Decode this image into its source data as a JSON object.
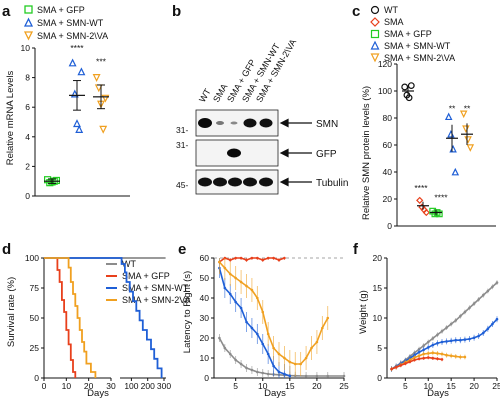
{
  "panels": {
    "a": {
      "label": "a",
      "legend": [
        "SMA + GFP",
        "SMA + SMN-WT",
        "SMA + SMN-2\\VA"
      ],
      "ylabel": "Relative mRNA Levels",
      "yticks": [
        "0",
        "2",
        "4",
        "6",
        "8",
        "10"
      ],
      "stars": [
        "****",
        "***"
      ]
    },
    "b": {
      "label": "b",
      "lanes": [
        "WT",
        "SMA",
        "SMA + GFP",
        "SMA + SMN-WT",
        "SMA + SMN-2\\VA"
      ],
      "bands": [
        "SMN",
        "GFP",
        "Tubulin"
      ],
      "markers": [
        "31-",
        "31-",
        "45-"
      ]
    },
    "c": {
      "label": "c",
      "legend": [
        "WT",
        "SMA",
        "SMA + GFP",
        "SMA + SMN-WT",
        "SMA + SMN-2\\VA"
      ],
      "ylabel": "Relative SMN protein levels (%)",
      "yticks": [
        "0",
        "20",
        "40",
        "60",
        "80",
        "100",
        "120"
      ],
      "stars": [
        "****",
        "****",
        "**",
        "**"
      ]
    },
    "d": {
      "label": "d",
      "legend": [
        "WT",
        "SMA + GFP",
        "SMA + SMN-WT",
        "SMA + SMN-2VA"
      ],
      "ylabel": "Survival rate (%)",
      "xlabel": "Days",
      "yticks": [
        "0",
        "25",
        "50",
        "75",
        "100"
      ],
      "xticks": [
        "0",
        "10",
        "20",
        "30",
        "100",
        "200",
        "300"
      ]
    },
    "e": {
      "label": "e",
      "ylabel": "Latency to Right (s)",
      "xlabel": "Days",
      "yticks": [
        "0",
        "10",
        "20",
        "30",
        "40",
        "50",
        "60"
      ],
      "xticks": [
        "5",
        "10",
        "15",
        "20",
        "25"
      ]
    },
    "f": {
      "label": "f",
      "ylabel": "Weight (g)",
      "xlabel": "Days",
      "yticks": [
        "0",
        "5",
        "10",
        "15",
        "20"
      ],
      "xticks": [
        "5",
        "10",
        "15",
        "20",
        "25"
      ]
    }
  },
  "colors": {
    "wt": "#8c8c8c",
    "gfp": "#22cc22",
    "sma": "#e8401c",
    "smnwt": "#1f5fd6",
    "smn2va": "#f0a020",
    "black": "#111111"
  },
  "chart_data": [
    {
      "panel": "a",
      "type": "scatter",
      "categories": [
        "SMA + GFP",
        "SMA + SMN-WT",
        "SMA + SMN-2\\VA"
      ],
      "means": [
        1.0,
        6.8,
        6.7
      ],
      "sem": [
        0.15,
        1.0,
        0.8
      ],
      "points": [
        [
          1.1,
          0.9,
          0.95,
          1.0,
          1.05
        ],
        [
          9.0,
          6.9,
          4.9,
          4.5,
          8.4
        ],
        [
          8.0,
          7.3,
          6.2,
          4.5,
          6.6
        ]
      ],
      "ylim": [
        0,
        10
      ]
    },
    {
      "panel": "c",
      "type": "scatter",
      "categories": [
        "WT",
        "SMA",
        "SMA + GFP",
        "SMA + SMN-WT",
        "SMA + SMN-2\\VA"
      ],
      "means": [
        100,
        15,
        10,
        65,
        68
      ],
      "sem": [
        4,
        3,
        2,
        10,
        8
      ],
      "points": [
        [
          103,
          97,
          95,
          104
        ],
        [
          19,
          14,
          12,
          10
        ],
        [
          11,
          9,
          10,
          9
        ],
        [
          81,
          68,
          57,
          40
        ],
        [
          83,
          72,
          64,
          58
        ]
      ],
      "ylim": [
        0,
        120
      ]
    },
    {
      "panel": "d",
      "type": "line",
      "series": [
        {
          "key": "wt",
          "steps": [
            [
              0,
              100
            ],
            [
              310,
              100
            ]
          ]
        },
        {
          "key": "sma",
          "steps": [
            [
              0,
              100
            ],
            [
              6,
              100
            ],
            [
              6,
              90
            ],
            [
              7,
              90
            ],
            [
              7,
              80
            ],
            [
              8,
              80
            ],
            [
              8,
              65
            ],
            [
              9,
              65
            ],
            [
              9,
              55
            ],
            [
              10,
              55
            ],
            [
              10,
              40
            ],
            [
              11,
              40
            ],
            [
              11,
              28
            ],
            [
              12,
              28
            ],
            [
              12,
              15
            ],
            [
              13,
              15
            ],
            [
              13,
              5
            ],
            [
              14,
              5
            ],
            [
              14,
              0
            ]
          ]
        },
        {
          "key": "smnwt",
          "steps": [
            [
              0,
              100
            ],
            [
              40,
              100
            ],
            [
              40,
              95
            ],
            [
              60,
              95
            ],
            [
              60,
              88
            ],
            [
              70,
              88
            ],
            [
              70,
              80
            ],
            [
              90,
              80
            ],
            [
              90,
              72
            ],
            [
              110,
              72
            ],
            [
              110,
              64
            ],
            [
              130,
              64
            ],
            [
              130,
              56
            ],
            [
              150,
              56
            ],
            [
              150,
              48
            ],
            [
              170,
              48
            ],
            [
              170,
              40
            ],
            [
              195,
              40
            ],
            [
              195,
              32
            ],
            [
              220,
              32
            ],
            [
              220,
              24
            ],
            [
              240,
              24
            ],
            [
              240,
              16
            ],
            [
              260,
              16
            ],
            [
              260,
              8
            ],
            [
              285,
              8
            ],
            [
              285,
              0
            ]
          ]
        },
        {
          "key": "smn2va",
          "steps": [
            [
              0,
              100
            ],
            [
              11,
              100
            ],
            [
              11,
              92
            ],
            [
              12,
              92
            ],
            [
              12,
              80
            ],
            [
              13,
              80
            ],
            [
              13,
              70
            ],
            [
              14,
              70
            ],
            [
              14,
              60
            ],
            [
              15,
              60
            ],
            [
              15,
              50
            ],
            [
              16,
              50
            ],
            [
              16,
              40
            ],
            [
              17,
              40
            ],
            [
              17,
              30
            ],
            [
              18,
              30
            ],
            [
              18,
              22
            ],
            [
              19,
              22
            ],
            [
              19,
              12
            ],
            [
              21,
              12
            ],
            [
              21,
              5
            ],
            [
              23,
              5
            ],
            [
              23,
              0
            ]
          ]
        }
      ]
    },
    {
      "panel": "e",
      "type": "line",
      "xlim": [
        1,
        25
      ],
      "ylim": [
        0,
        60
      ],
      "series": [
        {
          "key": "wt",
          "x": [
            2,
            3,
            4,
            5,
            6,
            7,
            8,
            9,
            10,
            11,
            12,
            13,
            14,
            15,
            16,
            18,
            20,
            22,
            25
          ],
          "y": [
            20,
            15,
            12,
            9,
            7,
            5,
            4,
            3,
            2.5,
            2,
            1.8,
            1.6,
            1.4,
            1.2,
            1.1,
            1.0,
            1.0,
            1.0,
            1.0
          ],
          "err": 2
        },
        {
          "key": "sma",
          "x": [
            2,
            3,
            4,
            5,
            6,
            7,
            8,
            9,
            10,
            11,
            12,
            13,
            14
          ],
          "y": [
            58,
            60,
            59,
            60,
            60,
            59,
            60,
            60,
            59,
            60,
            60,
            59,
            60
          ],
          "err": 1
        },
        {
          "key": "smnwt",
          "x": [
            2,
            3,
            4,
            5,
            6,
            7,
            8,
            9,
            10,
            11,
            12,
            13,
            14,
            15
          ],
          "y": [
            55,
            45,
            42,
            38,
            35,
            28,
            25,
            22,
            17,
            12,
            6,
            3,
            2,
            1
          ],
          "err": 5
        },
        {
          "key": "smn2va",
          "x": [
            2,
            3,
            4,
            5,
            6,
            7,
            8,
            9,
            10,
            11,
            12,
            13,
            14,
            15,
            16,
            17,
            18,
            19,
            20,
            21,
            22
          ],
          "y": [
            58,
            55,
            52,
            50,
            48,
            46,
            44,
            40,
            33,
            22,
            15,
            12,
            10,
            8,
            7,
            7,
            10,
            15,
            18,
            25,
            30
          ],
          "err": 6
        }
      ]
    },
    {
      "panel": "f",
      "type": "line",
      "xlim": [
        1,
        25
      ],
      "ylim": [
        0,
        20
      ],
      "series": [
        {
          "key": "wt",
          "x": [
            2,
            3,
            4,
            5,
            6,
            7,
            8,
            9,
            10,
            11,
            12,
            13,
            14,
            15,
            16,
            17,
            18,
            19,
            20,
            21,
            22,
            23,
            24,
            25
          ],
          "y": [
            1.5,
            2.0,
            2.5,
            3.0,
            3.6,
            4.2,
            4.8,
            5.4,
            6.0,
            6.6,
            7.2,
            7.8,
            8.4,
            9.0,
            9.6,
            10.3,
            11.0,
            11.7,
            12.4,
            13.1,
            13.8,
            14.5,
            15.2,
            15.9
          ],
          "err": 0.4
        },
        {
          "key": "smnwt",
          "x": [
            2,
            3,
            4,
            5,
            6,
            7,
            8,
            9,
            10,
            11,
            12,
            13,
            14,
            15,
            16,
            17,
            18,
            19,
            20,
            21,
            22,
            23,
            24,
            25
          ],
          "y": [
            1.5,
            1.9,
            2.4,
            2.8,
            3.3,
            3.8,
            4.3,
            4.7,
            5.1,
            5.5,
            5.8,
            6.0,
            6.1,
            6.2,
            6.3,
            6.3,
            6.4,
            6.5,
            6.7,
            7.0,
            7.5,
            8.2,
            9.0,
            9.8
          ],
          "err": 0.5
        },
        {
          "key": "smn2va",
          "x": [
            2,
            3,
            4,
            5,
            6,
            7,
            8,
            9,
            10,
            11,
            12,
            13,
            14,
            15,
            16,
            17,
            18
          ],
          "y": [
            1.5,
            1.8,
            2.2,
            2.6,
            3.0,
            3.4,
            3.7,
            4.0,
            4.1,
            4.2,
            4.1,
            4.0,
            3.8,
            3.7,
            3.6,
            3.5,
            3.5
          ],
          "err": 0.4
        },
        {
          "key": "sma",
          "x": [
            2,
            3,
            4,
            5,
            6,
            7,
            8,
            9,
            10,
            11,
            12,
            13
          ],
          "y": [
            1.5,
            1.8,
            2.1,
            2.4,
            2.7,
            3.0,
            3.2,
            3.3,
            3.4,
            3.3,
            3.2,
            3.1
          ],
          "err": 0.3
        }
      ]
    }
  ]
}
